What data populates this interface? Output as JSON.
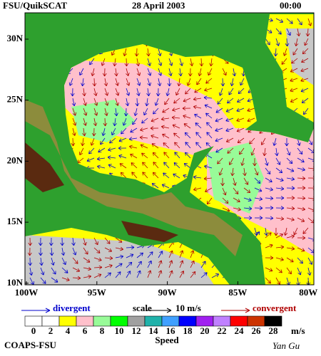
{
  "header": {
    "product": "FSU/QuikSCAT",
    "date": "28 April 2003",
    "time": "00:00"
  },
  "axes": {
    "lat_labels": [
      "30N",
      "25N",
      "20N",
      "15N",
      "10N"
    ],
    "lon_labels": [
      "100W",
      "95W",
      "90W",
      "85W",
      "80W"
    ]
  },
  "legend": {
    "divergent": "divergent",
    "divergent_color": "#0000cc",
    "scale": "scale",
    "scale_value": "10 m/s",
    "convergent": "convergent",
    "convergent_color": "#b00000"
  },
  "colorbar": {
    "labels": [
      "0",
      "2",
      "4",
      "6",
      "8",
      "10",
      "12",
      "14",
      "16",
      "18",
      "20",
      "22",
      "24",
      "26",
      "28"
    ],
    "colors": [
      "#ffffff",
      "#ffffff",
      "#ffff00",
      "#ffc0cb",
      "#98fb98",
      "#00ff00",
      "#a0a0a0",
      "#20b2aa",
      "#40a0ff",
      "#0000ff",
      "#a020f0",
      "#c080ff",
      "#ff0000",
      "#cc3300",
      "#000000"
    ],
    "unit": "m/s",
    "title": "Speed"
  },
  "footer": {
    "credit": "COAPS-FSU",
    "author": "Yan Gu"
  }
}
